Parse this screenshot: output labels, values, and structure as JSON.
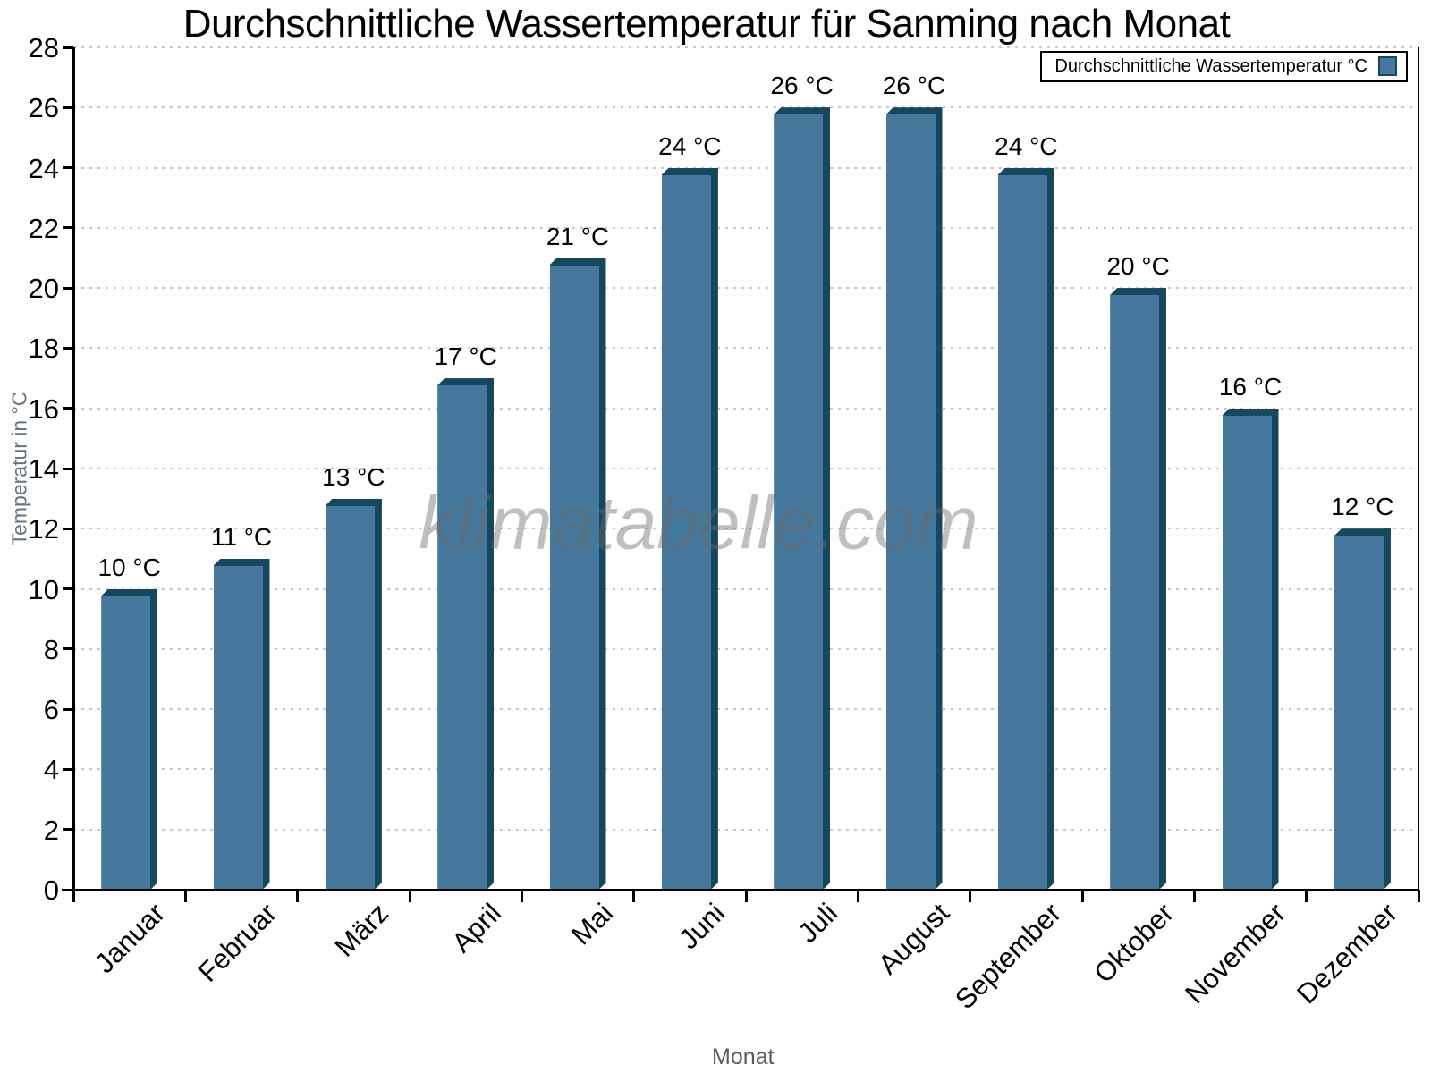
{
  "chart_data": {
    "type": "bar",
    "title": "Durchschnittliche Wassertemperatur für Sanming nach Monat",
    "xlabel": "Monat",
    "ylabel": "Temperatur in °C",
    "categories": [
      "Januar",
      "Februar",
      "März",
      "April",
      "Mai",
      "Juni",
      "Juli",
      "August",
      "September",
      "Oktober",
      "November",
      "Dezember"
    ],
    "values": [
      10,
      11,
      13,
      17,
      21,
      24,
      26,
      26,
      24,
      20,
      16,
      12
    ],
    "bar_labels": [
      "10 °C",
      "11 °C",
      "13 °C",
      "17 °C",
      "21 °C",
      "24 °C",
      "26 °C",
      "26 °C",
      "24 °C",
      "20 °C",
      "16 °C",
      "12 °C"
    ],
    "ylim": [
      0,
      28
    ],
    "ytick_step": 2,
    "grid": {
      "horizontal": true,
      "style": "dotted"
    },
    "legend": {
      "label": "Durchschnittliche Wassertemperatur °C",
      "position": "top-right"
    },
    "colors": {
      "bar_face": "#45789C",
      "bar_edge": "#17465F",
      "gridline": "#C8C8C8",
      "axis": "#000000",
      "y_axis_title": "#66747F",
      "x_axis_title": "#535C63",
      "watermark": "#696969"
    }
  },
  "watermark": {
    "text": "klimatabelle.com"
  }
}
